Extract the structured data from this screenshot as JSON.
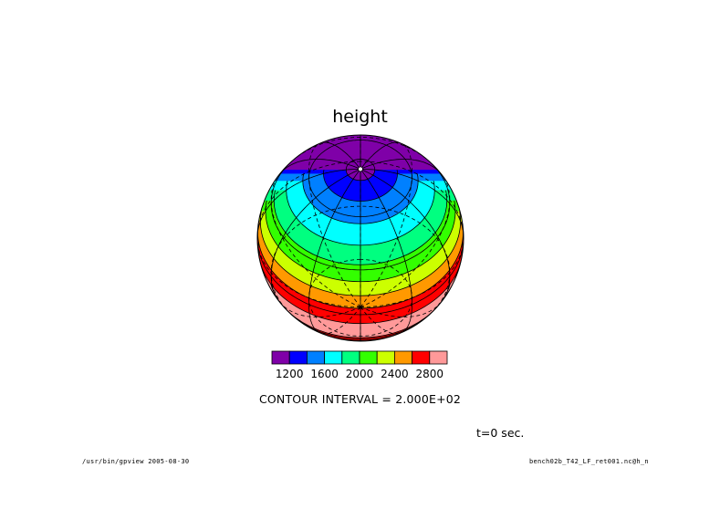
{
  "chart_data": {
    "type": "contour-globe",
    "title": "height",
    "projection": "orthographic",
    "levels": [
      1000,
      1200,
      1400,
      1600,
      1800,
      2000,
      2200,
      2400,
      2600,
      2800,
      3000
    ],
    "colors": [
      "#7f00a8",
      "#0000ff",
      "#0080ff",
      "#00ffff",
      "#00ff80",
      "#33ff00",
      "#ccff00",
      "#ff9900",
      "#ff0000",
      "#ff9999"
    ],
    "colorbar_ticks": [
      "1200",
      "1600",
      "2000",
      "2400",
      "2800"
    ],
    "contour_interval": "CONTOUR INTERVAL = 2.000E+02",
    "time_label": "t=0 sec."
  },
  "footer": {
    "left": "/usr/bin/gpview 2005-08-30",
    "right": "bench02b_T42_LF_ret001.nc@h_n"
  }
}
